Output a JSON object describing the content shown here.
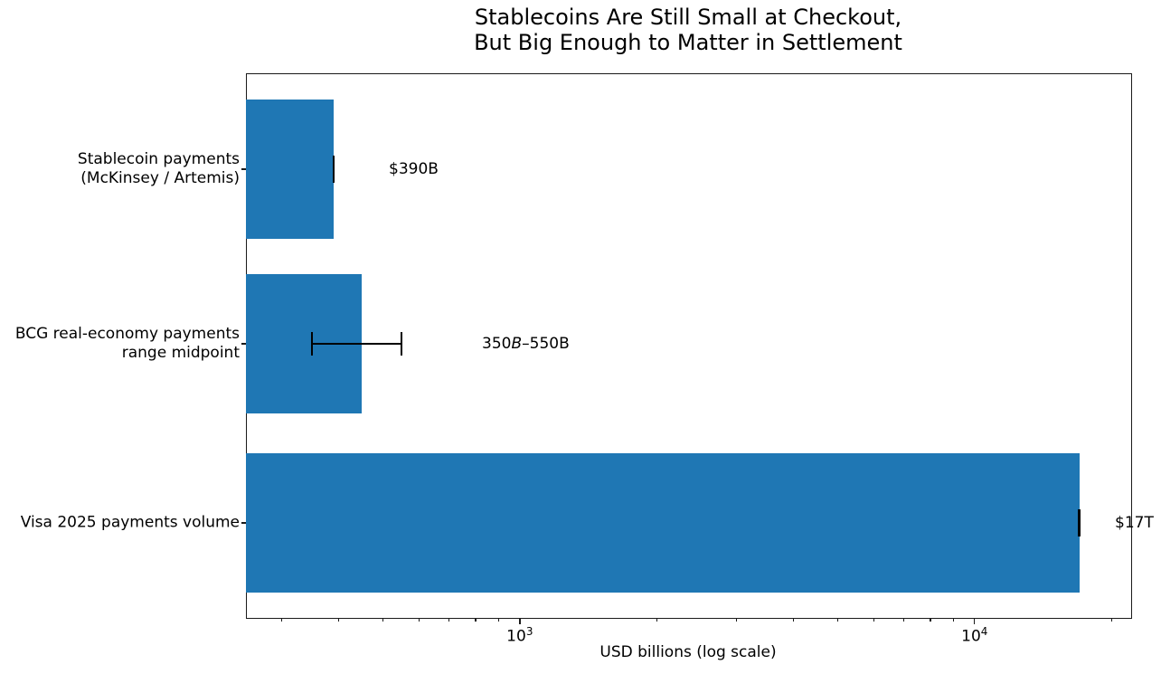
{
  "chart_data": {
    "type": "bar",
    "orientation": "horizontal",
    "title": "Stablecoins Are Still Small at Checkout,\nBut Big Enough to Matter in Settlement",
    "xlabel": "USD billions (log scale)",
    "xscale": "log",
    "xlim": [
      250,
      22000
    ],
    "grid": false,
    "legend": false,
    "categories": [
      "Stablecoin payments\n(McKinsey / Artemis)",
      "BCG real-economy payments\nrange midpoint",
      "Visa 2025 payments volume"
    ],
    "values": [
      390,
      450,
      17000
    ],
    "error_ranges": [
      [
        390,
        390
      ],
      [
        350,
        550
      ],
      [
        17000,
        17000
      ]
    ],
    "annotations": [
      {
        "parts": [
          {
            "text": "$390B",
            "italic": false
          }
        ]
      },
      {
        "parts": [
          {
            "text": "350",
            "italic": false
          },
          {
            "text": "B",
            "italic": true
          },
          {
            "text": "–550B",
            "italic": false
          }
        ]
      },
      {
        "parts": [
          {
            "text": "$17T",
            "italic": false
          }
        ]
      }
    ],
    "x_major_ticks": [
      {
        "value": 1000,
        "base": "10",
        "exp": "3"
      },
      {
        "value": 10000,
        "base": "10",
        "exp": "4"
      }
    ],
    "bar_color": "#1f77b4",
    "error_color": "#000000",
    "background_color": "#ffffff"
  }
}
